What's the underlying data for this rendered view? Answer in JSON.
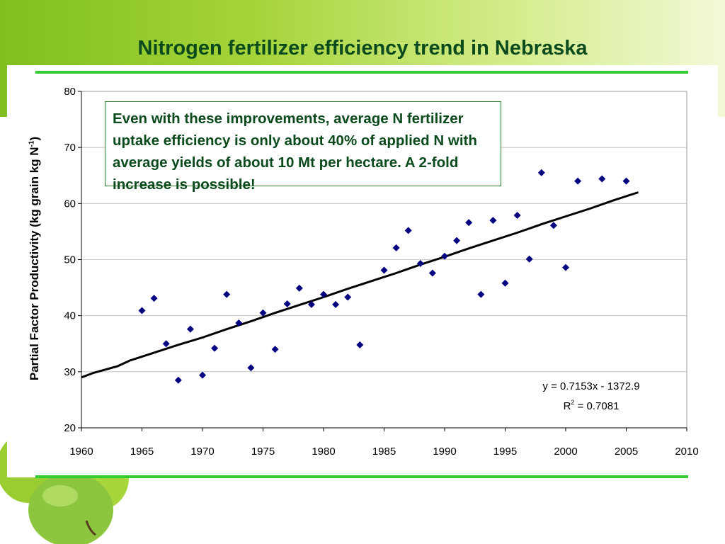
{
  "slide": {
    "title": "Nitrogen fertilizer efficiency trend in Nebraska"
  },
  "colors": {
    "title": "#0b4a1c",
    "rule": "#33cc33",
    "points": "#000080",
    "trend": "#000000"
  },
  "callout": {
    "text": "Even with these improvements, average N fertilizer uptake efficiency is only about 40% of applied N with average yields of about 10 Mt per hectare.  A 2-fold increase is possible!"
  },
  "chart_data": {
    "type": "scatter",
    "xlabel": "",
    "ylabel_main": "Partial Factor Productivity (kg grain kg N",
    "ylabel_sup": "-1",
    "ylabel_close": ")",
    "xlim": [
      1960,
      2010
    ],
    "ylim": [
      20,
      80
    ],
    "xticks": [
      1960,
      1965,
      1970,
      1975,
      1980,
      1985,
      1990,
      1995,
      2000,
      2005,
      2010
    ],
    "yticks": [
      20,
      30,
      40,
      50,
      60,
      70,
      80
    ],
    "grid": true,
    "series": [
      {
        "x": [
          1965,
          1966,
          1967,
          1968,
          1969,
          1970,
          1971,
          1972,
          1973,
          1974,
          1975,
          1976,
          1977,
          1978,
          1979,
          1980,
          1981,
          1982,
          1983,
          1985,
          1986,
          1987,
          1988,
          1989,
          1990,
          1991,
          1992,
          1993,
          1994,
          1995,
          1996,
          1997,
          1998,
          1999,
          2000,
          2001,
          2003,
          2005
        ],
        "y": [
          40.9,
          43.1,
          35.0,
          28.5,
          37.6,
          29.4,
          34.2,
          43.8,
          38.7,
          30.7,
          40.5,
          34.0,
          42.1,
          44.9,
          42.0,
          43.8,
          42.0,
          43.3,
          34.8,
          48.1,
          52.1,
          55.2,
          49.3,
          47.6,
          50.6,
          53.4,
          56.6,
          43.8,
          57.0,
          45.8,
          57.9,
          50.1,
          65.5,
          56.1,
          48.6,
          64.0,
          64.4,
          64.0
        ]
      }
    ],
    "trendline": {
      "x": [
        1960,
        1961,
        1963,
        1964,
        1966,
        1968,
        1970,
        1972,
        1974,
        1976,
        1978,
        1980,
        1982,
        1984,
        1986,
        1988,
        1990,
        1992,
        1994,
        1996,
        1998,
        2000,
        2002,
        2004,
        2005,
        2006
      ],
      "y": [
        29.0,
        29.8,
        31.0,
        32.0,
        33.4,
        34.8,
        36.1,
        37.6,
        39.0,
        40.5,
        41.9,
        43.3,
        44.8,
        46.2,
        47.6,
        49.1,
        50.5,
        52.0,
        53.4,
        54.8,
        56.3,
        57.7,
        59.1,
        60.6,
        61.3,
        62.0
      ],
      "equation": "y = 0.7153x - 1372.9",
      "r2_prefix": "R",
      "r2_sup": "2",
      "r2_value": " = 0.7081"
    }
  }
}
